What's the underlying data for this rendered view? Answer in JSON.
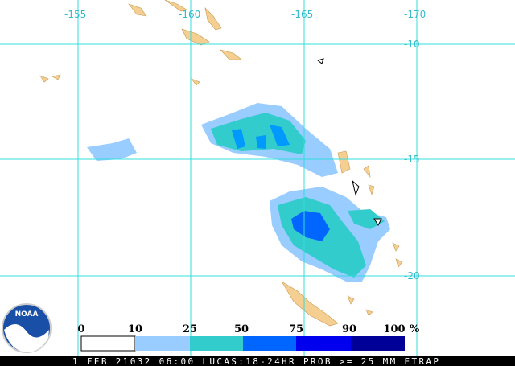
{
  "grid": {
    "lon_labels": [
      "-155",
      "-160",
      "-165",
      "-170"
    ],
    "lat_labels": [
      "-10",
      "-15",
      "-20"
    ]
  },
  "logo": "NOAA",
  "legend": {
    "labels": [
      "0",
      "10",
      "25",
      "50",
      "75",
      "90",
      "100"
    ],
    "unit": "%"
  },
  "footer": "1 FEB 21032 06:00 LUCAS:18-24HR PROB >= 25 MM ETRAP"
}
